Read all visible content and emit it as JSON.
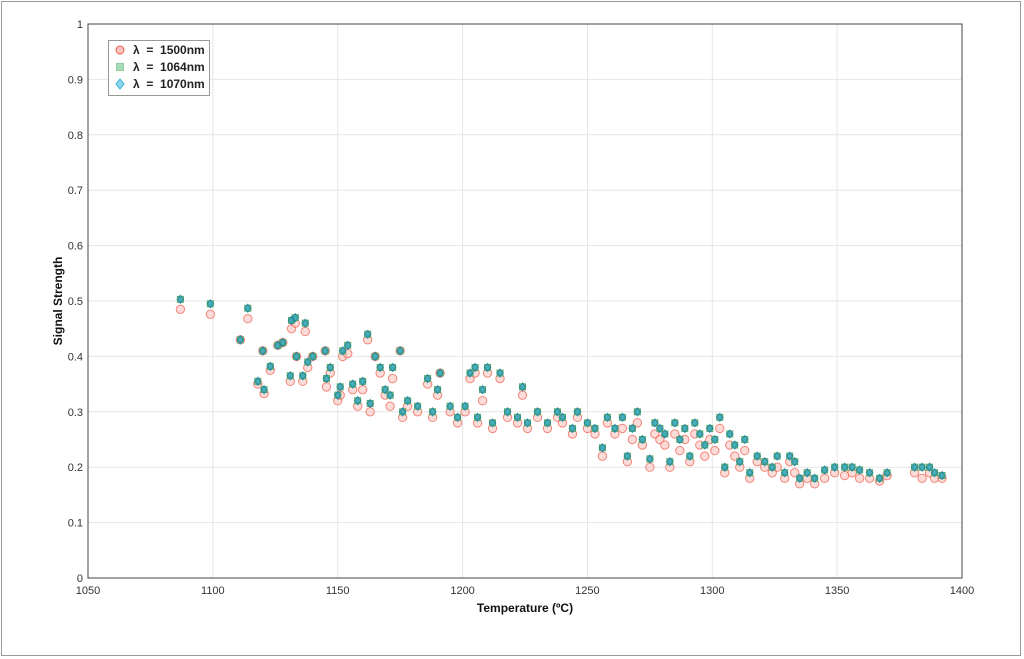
{
  "chart_data": {
    "type": "scatter",
    "title": "",
    "xlabel": "Temperature  (ºC)",
    "ylabel": "Signal Strength",
    "xlim": [
      1050,
      1400
    ],
    "ylim": [
      0,
      1
    ],
    "xticks": [
      "1050",
      "1100",
      "1150",
      "1200",
      "1250",
      "1300",
      "1350",
      "1400"
    ],
    "yticks": [
      "0",
      "0.1",
      "0.2",
      "0.3",
      "0.4",
      "0.5",
      "0.6",
      "0.7",
      "0.8",
      "0.9",
      "1"
    ],
    "grid": true,
    "legend_position": "top-left",
    "x": [
      1087,
      1099,
      1111,
      1114,
      1118,
      1120,
      1120.5,
      1123,
      1126,
      1128,
      1131,
      1131.5,
      1133,
      1133.5,
      1136,
      1137,
      1138,
      1140,
      1145,
      1145.5,
      1147,
      1150,
      1151,
      1152,
      1154,
      1156,
      1158,
      1160,
      1162,
      1163,
      1165,
      1167,
      1169,
      1171,
      1172,
      1175,
      1176,
      1178,
      1182,
      1186,
      1188,
      1190,
      1191,
      1195,
      1198,
      1201,
      1203,
      1205,
      1206,
      1208,
      1210,
      1212,
      1215,
      1218,
      1222,
      1224,
      1226,
      1230,
      1234,
      1238,
      1240,
      1244,
      1246,
      1250,
      1253,
      1256,
      1258,
      1261,
      1264,
      1266,
      1268,
      1270,
      1272,
      1275,
      1277,
      1279,
      1281,
      1283,
      1285,
      1287,
      1289,
      1291,
      1293,
      1295,
      1297,
      1299,
      1301,
      1303,
      1305,
      1307,
      1309,
      1311,
      1313,
      1315,
      1318,
      1321,
      1324,
      1326,
      1329,
      1331,
      1333,
      1335,
      1338,
      1341,
      1345,
      1349,
      1353,
      1356,
      1359,
      1363,
      1367,
      1370,
      1381,
      1384,
      1387,
      1389,
      1392
    ],
    "series": [
      {
        "name": "λ  =  1500nm",
        "color": "#f05a4a",
        "marker": "circle",
        "y": [
          0.485,
          0.476,
          0.43,
          0.468,
          0.35,
          0.41,
          0.333,
          0.375,
          0.42,
          0.425,
          0.355,
          0.45,
          0.46,
          0.4,
          0.355,
          0.445,
          0.38,
          0.4,
          0.41,
          0.345,
          0.37,
          0.32,
          0.33,
          0.4,
          0.405,
          0.34,
          0.31,
          0.34,
          0.43,
          0.3,
          0.4,
          0.37,
          0.33,
          0.31,
          0.36,
          0.41,
          0.29,
          0.31,
          0.3,
          0.35,
          0.29,
          0.33,
          0.37,
          0.3,
          0.28,
          0.3,
          0.36,
          0.37,
          0.28,
          0.32,
          0.37,
          0.27,
          0.36,
          0.29,
          0.28,
          0.33,
          0.27,
          0.29,
          0.27,
          0.29,
          0.28,
          0.26,
          0.29,
          0.27,
          0.26,
          0.22,
          0.28,
          0.26,
          0.27,
          0.21,
          0.25,
          0.28,
          0.24,
          0.2,
          0.26,
          0.25,
          0.24,
          0.2,
          0.26,
          0.23,
          0.25,
          0.21,
          0.26,
          0.24,
          0.22,
          0.25,
          0.23,
          0.27,
          0.19,
          0.24,
          0.22,
          0.2,
          0.23,
          0.18,
          0.21,
          0.2,
          0.19,
          0.2,
          0.18,
          0.21,
          0.19,
          0.17,
          0.18,
          0.17,
          0.18,
          0.19,
          0.185,
          0.19,
          0.18,
          0.18,
          0.175,
          0.185,
          0.19,
          0.18,
          0.19,
          0.18,
          0.18
        ]
      },
      {
        "name": "λ  =  1064nm",
        "color": "#8fd0a0",
        "marker": "square",
        "y": [
          0.503,
          0.495,
          0.43,
          0.487,
          0.355,
          0.41,
          0.34,
          0.382,
          0.42,
          0.425,
          0.365,
          0.465,
          0.47,
          0.4,
          0.365,
          0.46,
          0.39,
          0.4,
          0.41,
          0.36,
          0.38,
          0.33,
          0.345,
          0.41,
          0.42,
          0.35,
          0.32,
          0.355,
          0.44,
          0.315,
          0.4,
          0.38,
          0.34,
          0.33,
          0.38,
          0.41,
          0.3,
          0.32,
          0.31,
          0.36,
          0.3,
          0.34,
          0.37,
          0.31,
          0.29,
          0.31,
          0.37,
          0.38,
          0.29,
          0.34,
          0.38,
          0.28,
          0.37,
          0.3,
          0.29,
          0.345,
          0.28,
          0.3,
          0.28,
          0.3,
          0.29,
          0.27,
          0.3,
          0.28,
          0.27,
          0.235,
          0.29,
          0.27,
          0.29,
          0.22,
          0.27,
          0.3,
          0.25,
          0.215,
          0.28,
          0.27,
          0.26,
          0.21,
          0.28,
          0.25,
          0.27,
          0.22,
          0.28,
          0.26,
          0.24,
          0.27,
          0.25,
          0.29,
          0.2,
          0.26,
          0.24,
          0.21,
          0.25,
          0.19,
          0.22,
          0.21,
          0.2,
          0.22,
          0.19,
          0.22,
          0.21,
          0.18,
          0.19,
          0.18,
          0.195,
          0.2,
          0.2,
          0.2,
          0.195,
          0.19,
          0.18,
          0.19,
          0.2,
          0.2,
          0.2,
          0.19,
          0.185
        ]
      },
      {
        "name": "λ  =  1070nm",
        "color": "#5bc8e8",
        "marker": "diamond",
        "y": [
          0.503,
          0.495,
          0.43,
          0.487,
          0.355,
          0.41,
          0.34,
          0.382,
          0.42,
          0.425,
          0.365,
          0.465,
          0.47,
          0.4,
          0.365,
          0.46,
          0.39,
          0.4,
          0.41,
          0.36,
          0.38,
          0.33,
          0.345,
          0.41,
          0.42,
          0.35,
          0.32,
          0.355,
          0.44,
          0.315,
          0.4,
          0.38,
          0.34,
          0.33,
          0.38,
          0.41,
          0.3,
          0.32,
          0.31,
          0.36,
          0.3,
          0.34,
          0.37,
          0.31,
          0.29,
          0.31,
          0.37,
          0.38,
          0.29,
          0.34,
          0.38,
          0.28,
          0.37,
          0.3,
          0.29,
          0.345,
          0.28,
          0.3,
          0.28,
          0.3,
          0.29,
          0.27,
          0.3,
          0.28,
          0.27,
          0.235,
          0.29,
          0.27,
          0.29,
          0.22,
          0.27,
          0.3,
          0.25,
          0.215,
          0.28,
          0.27,
          0.26,
          0.21,
          0.28,
          0.25,
          0.27,
          0.22,
          0.28,
          0.26,
          0.24,
          0.27,
          0.25,
          0.29,
          0.2,
          0.26,
          0.24,
          0.21,
          0.25,
          0.19,
          0.22,
          0.21,
          0.2,
          0.22,
          0.19,
          0.22,
          0.21,
          0.18,
          0.19,
          0.18,
          0.195,
          0.2,
          0.2,
          0.2,
          0.195,
          0.19,
          0.18,
          0.19,
          0.2,
          0.2,
          0.2,
          0.19,
          0.185
        ]
      }
    ]
  }
}
